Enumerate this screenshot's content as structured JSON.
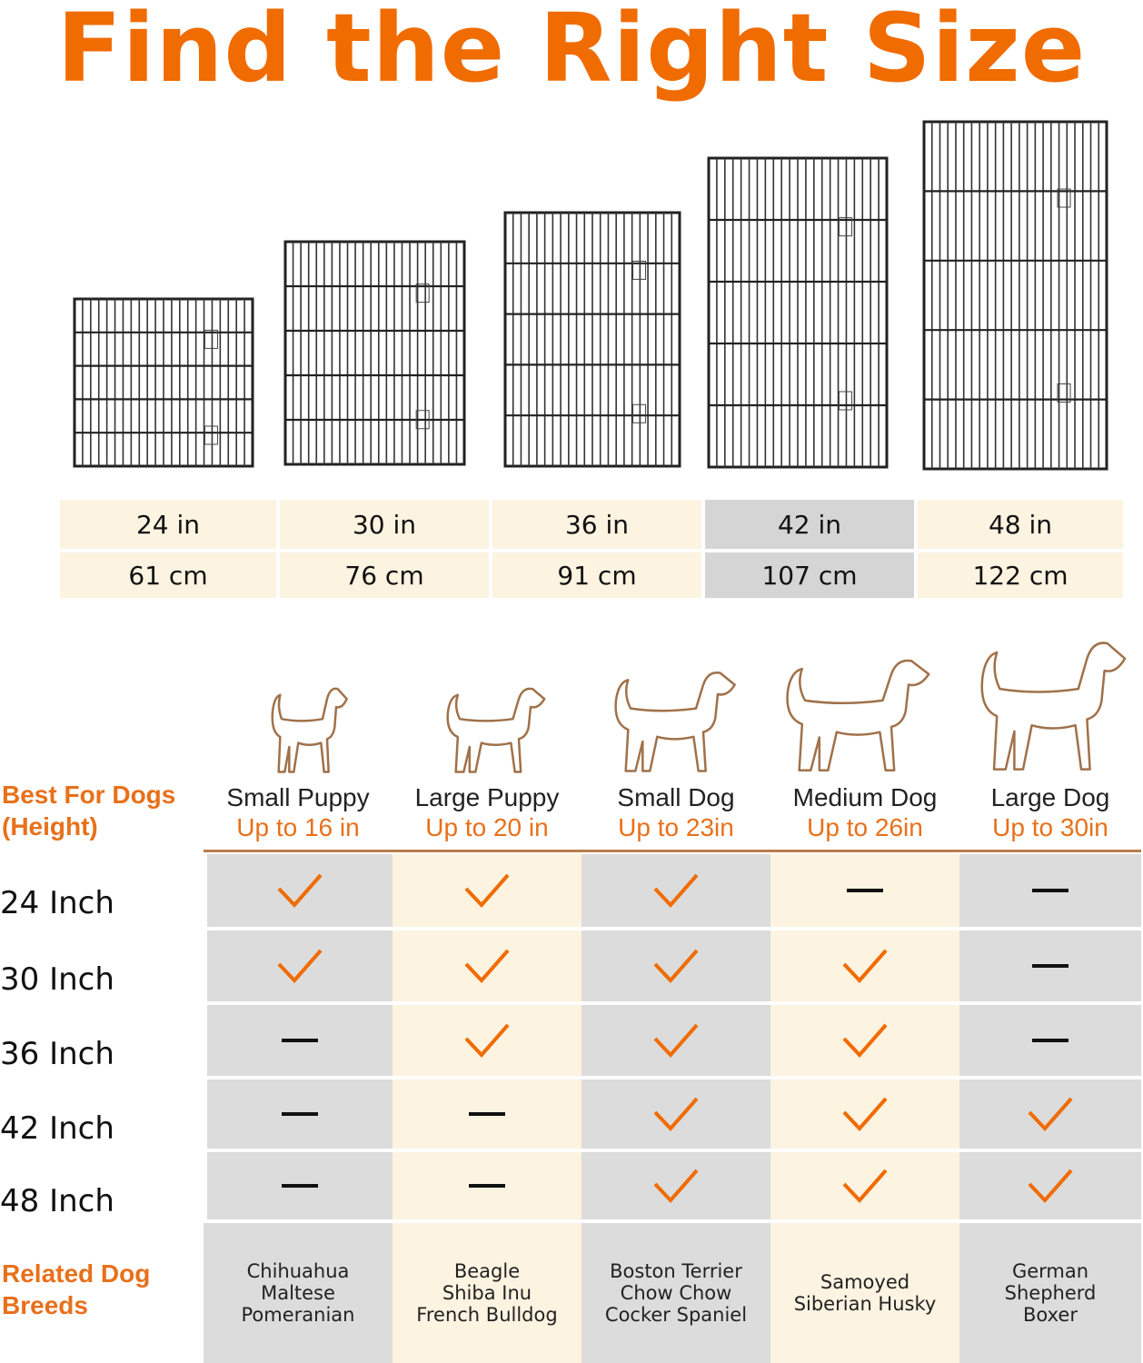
{
  "title": "Find the Right Size",
  "sizes": [
    {
      "in": "24 in",
      "cm": "61 cm",
      "highlight": false
    },
    {
      "in": "30 in",
      "cm": "76 cm",
      "highlight": false
    },
    {
      "in": "36 in",
      "cm": "91 cm",
      "highlight": false
    },
    {
      "in": "42 in",
      "cm": "107 cm",
      "highlight": true
    },
    {
      "in": "48 in",
      "cm": "122 cm",
      "highlight": false
    }
  ],
  "best_for_label": "Best For Dogs (Height)",
  "related_label": "Related Dog Breeds",
  "dogs": [
    {
      "name": "Small Puppy",
      "height": "Up to 16 in",
      "breeds": [
        "Chihuahua",
        "Maltese",
        "Pomeranian"
      ]
    },
    {
      "name": "Large Puppy",
      "height": "Up to 20 in",
      "breeds": [
        "Beagle",
        "Shiba Inu",
        "French Bulldog"
      ]
    },
    {
      "name": "Small Dog",
      "height": "Up to 23in",
      "breeds": [
        "Boston Terrier",
        "Chow Chow",
        "Cocker Spaniel"
      ]
    },
    {
      "name": "Medium Dog",
      "height": "Up to 26in",
      "breeds": [
        "Samoyed",
        "Siberian Husky"
      ]
    },
    {
      "name": "Large Dog",
      "height": "Up to 30in",
      "breeds": [
        "German",
        "Shepherd",
        "Boxer"
      ]
    }
  ],
  "rows": [
    {
      "label": "24 Inch",
      "fits": [
        true,
        true,
        true,
        false,
        false
      ]
    },
    {
      "label": "30 Inch",
      "fits": [
        true,
        true,
        true,
        true,
        false
      ]
    },
    {
      "label": "36 Inch",
      "fits": [
        false,
        true,
        true,
        true,
        false
      ]
    },
    {
      "label": "42 Inch",
      "fits": [
        false,
        false,
        true,
        true,
        true
      ]
    },
    {
      "label": "48 Inch",
      "fits": [
        false,
        false,
        true,
        true,
        true
      ]
    }
  ],
  "colors": {
    "accent": "#f06b00",
    "cream": "#fdf3e1",
    "gray": "#d9d9d9",
    "outline": "#a0714a"
  }
}
